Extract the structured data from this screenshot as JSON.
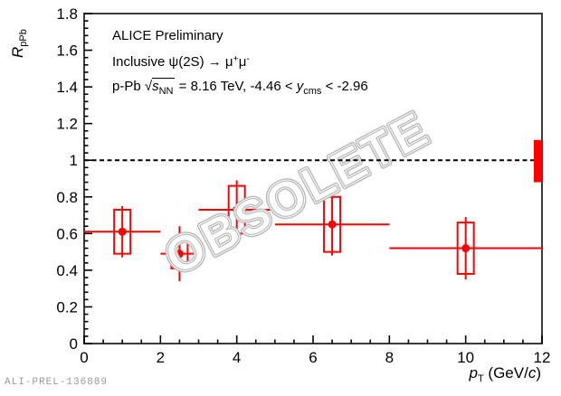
{
  "annotations": {
    "line1": "ALICE Preliminary",
    "line2_parts": [
      {
        "t": "Inclusive ψ(2S) "
      },
      {
        "t": "→"
      },
      {
        "t": " μ"
      },
      {
        "t": "+",
        "style": "sup"
      },
      {
        "t": "μ"
      },
      {
        "t": "-",
        "style": "sup"
      }
    ],
    "line3_parts": [
      {
        "t": "p-Pb "
      },
      {
        "t": "√"
      },
      {
        "over": [
          {
            "t": "s",
            "style": "i"
          },
          {
            "t": "NN",
            "style": "sub"
          }
        ]
      },
      {
        "t": " = 8.16 TeV, -4.46 < "
      },
      {
        "t": "y",
        "style": "i"
      },
      {
        "t": "cms",
        "style": "sub"
      },
      {
        "t": " < -2.96"
      }
    ]
  },
  "watermark": "OBSOLETE",
  "footer_id": "ALI-PREL-136889",
  "colors": {
    "data_red": "#ff0000",
    "frame": "#3c3c3c",
    "tick": "#000000",
    "reference_line": "#000000",
    "watermark_gray": "#bcbcbc",
    "footer_gray": "#9b9b9b"
  },
  "chart_data": {
    "type": "scatter",
    "title": "",
    "xlabel_parts": [
      {
        "t": "p",
        "style": "i"
      },
      {
        "t": "T",
        "style": "sub"
      },
      {
        "t": " (GeV/"
      },
      {
        "t": "c",
        "style": "i"
      },
      {
        "t": ")"
      }
    ],
    "ylabel_parts": [
      {
        "t": "R",
        "style": "i"
      },
      {
        "t": "pPb",
        "style": "sub"
      }
    ],
    "x_range": [
      0,
      12
    ],
    "y_range": [
      0,
      1.8
    ],
    "x_ticks": {
      "values": [
        0,
        2,
        4,
        6,
        8,
        10,
        12
      ],
      "labels": [
        "0",
        "2",
        "4",
        "6",
        "8",
        "10",
        "12"
      ],
      "minor_step": 0.5
    },
    "y_ticks": {
      "values": [
        0,
        0.2,
        0.4,
        0.6,
        0.8,
        1.0,
        1.2,
        1.4,
        1.6,
        1.8
      ],
      "labels": [
        "0",
        "0.2",
        "0.4",
        "0.6",
        "0.8",
        "1",
        "1.2",
        "1.4",
        "1.6",
        "1.8"
      ],
      "minor_step": 0.04
    },
    "grid": false,
    "legend": null,
    "reference_line_y": 1.0,
    "series": [
      {
        "name": "Inclusive psi(2S) R_pPb, backward rapidity",
        "marker": "filled-circle",
        "color": "#ff0000",
        "points": [
          {
            "x": 1.0,
            "x_lo": 0.0,
            "x_hi": 2.0,
            "y": 0.61,
            "stat": 0.14,
            "syst": 0.12
          },
          {
            "x": 2.5,
            "x_lo": 2.0,
            "x_hi": 3.0,
            "y": 0.49,
            "stat": 0.15,
            "syst": 0.08
          },
          {
            "x": 4.0,
            "x_lo": 3.0,
            "x_hi": 5.0,
            "y": 0.73,
            "stat": 0.16,
            "syst": 0.13
          },
          {
            "x": 6.5,
            "x_lo": 5.0,
            "x_hi": 8.0,
            "y": 0.65,
            "stat": 0.17,
            "syst": 0.15
          },
          {
            "x": 10.0,
            "x_lo": 8.0,
            "x_hi": 12.0,
            "y": 0.52,
            "stat": 0.17,
            "syst": 0.14
          }
        ]
      }
    ],
    "global_uncertainty_box": {
      "x": 12,
      "y_lo": 0.88,
      "y_hi": 1.11
    }
  }
}
